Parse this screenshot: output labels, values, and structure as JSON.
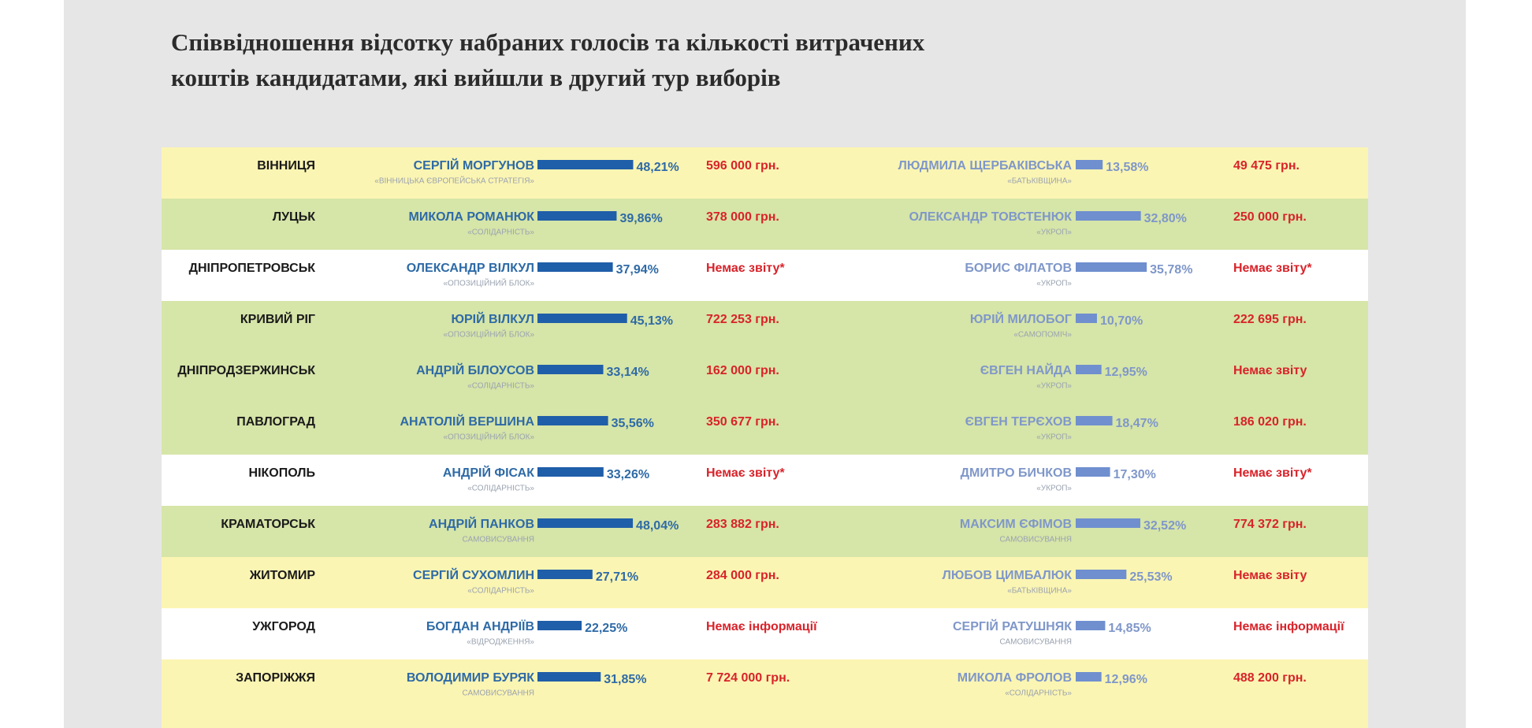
{
  "subtitle_lines": [
    "Співвідношення відсотку набраних голосів та кількості витрачених",
    "коштів кандидатами, які вийшли в другий тур виборів"
  ],
  "rows": [
    {
      "bg": "#fbf5b3",
      "city": "ВІННИЦЯ",
      "a": {
        "name": "СЕРГІЙ МОРГУНОВ",
        "party": "«ВІННИЦЬКА ЄВРОПЕЙСЬКА СТРАТЕГІЯ»",
        "pct": 48.21,
        "pct_label": "48,21%",
        "money": "596 000 грн."
      },
      "b": {
        "name": "ЛЮДМИЛА ЩЕРБАКІВСЬКА",
        "party": "«БАТЬКІВЩИНА»",
        "pct": 13.58,
        "pct_label": "13,58%",
        "money": "49 475 грн."
      }
    },
    {
      "bg": "#d6e5a8",
      "city": "ЛУЦЬК",
      "a": {
        "name": "МИКОЛА РОМАНЮК",
        "party": "«СОЛІДАРНІСТЬ»",
        "pct": 39.86,
        "pct_label": "39,86%",
        "money": "378 000 грн."
      },
      "b": {
        "name": "ОЛЕКСАНДР ТОВСТЕНЮК",
        "party": "«УКРОП»",
        "pct": 32.8,
        "pct_label": "32,80%",
        "money": "250 000 грн."
      }
    },
    {
      "bg": "#ffffff",
      "city": "ДНІПРОПЕТРОВСЬК",
      "a": {
        "name": "ОЛЕКСАНДР ВІЛКУЛ",
        "party": "«ОПОЗИЦІЙНИЙ БЛОК»",
        "pct": 37.94,
        "pct_label": "37,94%",
        "money": "Немає звіту*"
      },
      "b": {
        "name": "БОРИС ФІЛАТОВ",
        "party": "«УКРОП»",
        "pct": 35.78,
        "pct_label": "35,78%",
        "money": "Немає звіту*"
      }
    },
    {
      "bg": "#d6e5a8",
      "city": "КРИВИЙ РІГ",
      "a": {
        "name": "ЮРІЙ ВІЛКУЛ",
        "party": "«ОПОЗИЦІЙНИЙ БЛОК»",
        "pct": 45.13,
        "pct_label": "45,13%",
        "money": "722 253 грн."
      },
      "b": {
        "name": "ЮРІЙ МИЛОБОГ",
        "party": "«САМОПОМІЧ»",
        "pct": 10.7,
        "pct_label": "10,70%",
        "money": "222 695 грн."
      }
    },
    {
      "bg": "#d6e5a8",
      "city": "ДНІПРОДЗЕРЖИНСЬК",
      "a": {
        "name": "АНДРІЙ БІЛОУСОВ",
        "party": "«СОЛІДАРНІСТЬ»",
        "pct": 33.14,
        "pct_label": "33,14%",
        "money": "162 000 грн."
      },
      "b": {
        "name": "ЄВГЕН НАЙДА",
        "party": "«УКРОП»",
        "pct": 12.95,
        "pct_label": "12,95%",
        "money": "Немає звіту"
      }
    },
    {
      "bg": "#d6e5a8",
      "city": "ПАВЛОГРАД",
      "a": {
        "name": "АНАТОЛІЙ ВЕРШИНА",
        "party": "«ОПОЗИЦІЙНИЙ БЛОК»",
        "pct": 35.56,
        "pct_label": "35,56%",
        "money": "350 677 грн."
      },
      "b": {
        "name": "ЄВГЕН ТЕРЄХОВ",
        "party": "«УКРОП»",
        "pct": 18.47,
        "pct_label": "18,47%",
        "money": "186 020 грн."
      }
    },
    {
      "bg": "#ffffff",
      "city": "НІКОПОЛЬ",
      "a": {
        "name": "АНДРІЙ ФІСАК",
        "party": "«СОЛІДАРНІСТЬ»",
        "pct": 33.26,
        "pct_label": "33,26%",
        "money": "Немає звіту*"
      },
      "b": {
        "name": "ДМИТРО БИЧКОВ",
        "party": "«УКРОП»",
        "pct": 17.3,
        "pct_label": "17,30%",
        "money": "Немає звіту*"
      }
    },
    {
      "bg": "#d6e5a8",
      "city": "КРАМАТОРСЬК",
      "a": {
        "name": "АНДРІЙ ПАНКОВ",
        "party": "САМОВИСУВАННЯ",
        "pct": 48.04,
        "pct_label": "48,04%",
        "money": "283 882 грн."
      },
      "b": {
        "name": "МАКСИМ ЄФІМОВ",
        "party": "САМОВИСУВАННЯ",
        "pct": 32.52,
        "pct_label": "32,52%",
        "money": "774 372 грн."
      }
    },
    {
      "bg": "#fbf5b3",
      "city": "ЖИТОМИР",
      "a": {
        "name": "СЕРГІЙ СУХОМЛИН",
        "party": "«СОЛІДАРНІСТЬ»",
        "pct": 27.71,
        "pct_label": "27,71%",
        "money": "284 000 грн."
      },
      "b": {
        "name": "ЛЮБОВ ЦИМБАЛЮК",
        "party": "«БАТЬКІВЩИНА»",
        "pct": 25.53,
        "pct_label": "25,53%",
        "money": "Немає звіту"
      }
    },
    {
      "bg": "#ffffff",
      "city": "УЖГОРОД",
      "a": {
        "name": "БОГДАН АНДРІЇВ",
        "party": "«ВІДРОДЖЕННЯ»",
        "pct": 22.25,
        "pct_label": "22,25%",
        "money": "Немає інформації"
      },
      "b": {
        "name": "СЕРГІЙ РАТУШНЯК",
        "party": "САМОВИСУВАННЯ",
        "pct": 14.85,
        "pct_label": "14,85%",
        "money": "Немає інформації"
      }
    },
    {
      "bg": "#fbf5b3",
      "city": "ЗАПОРІЖЖЯ",
      "a": {
        "name": "ВОЛОДИМИР БУРЯК",
        "party": "САМОВИСУВАННЯ",
        "pct": 31.85,
        "pct_label": "31,85%",
        "money": "7 724 000 грн."
      },
      "b": {
        "name": "МИКОЛА ФРОЛОВ",
        "party": "«СОЛІДАРНІСТЬ»",
        "pct": 12.96,
        "pct_label": "12,96%",
        "money": "488 200 грн."
      }
    }
  ]
}
